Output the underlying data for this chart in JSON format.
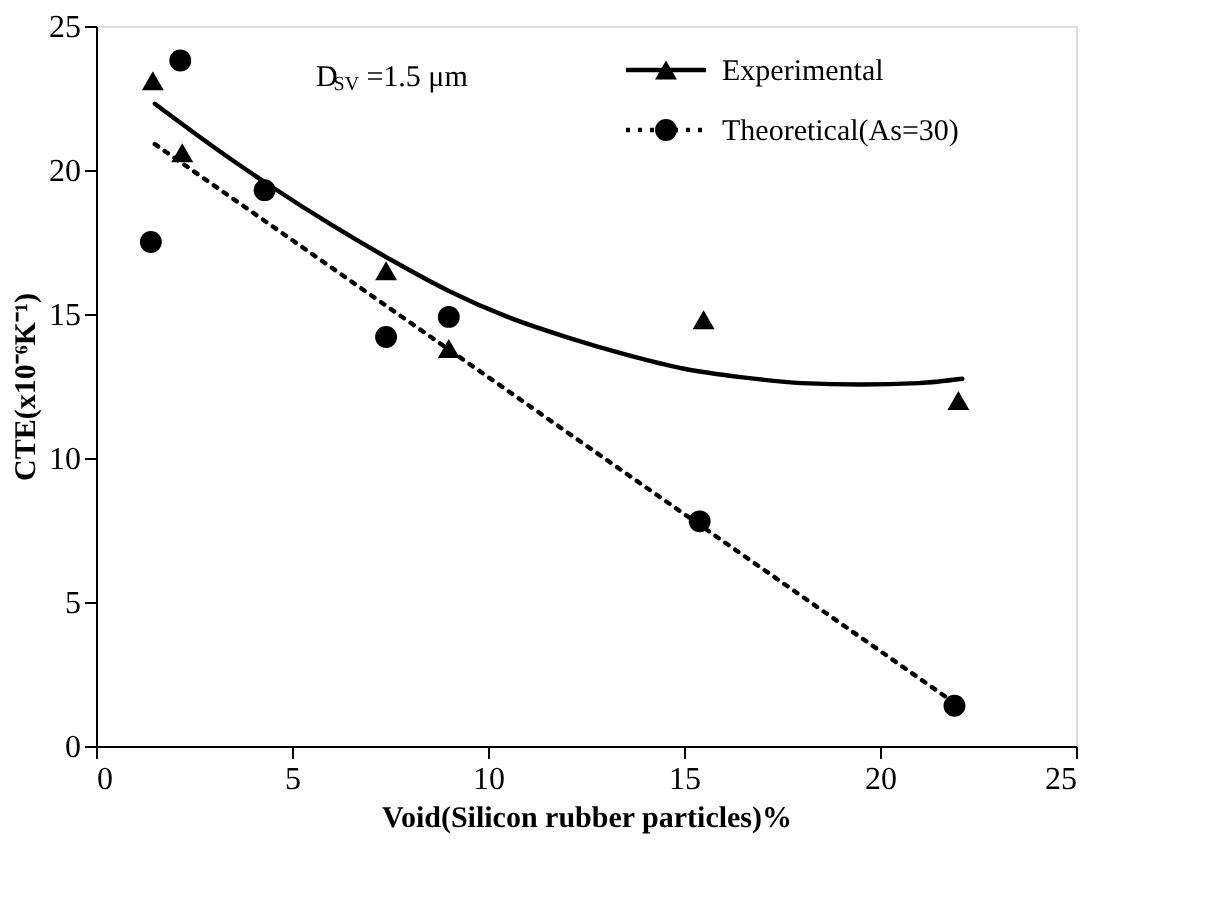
{
  "chart_data": {
    "type": "scatter",
    "xlabel": "Void(Silicon rubber particles)%",
    "ylabel": "CTE(x10⁻⁶K⁻¹)",
    "xlim": [
      0,
      25
    ],
    "ylim": [
      0,
      25
    ],
    "xticks": [
      0,
      5,
      10,
      15,
      20,
      25
    ],
    "yticks": [
      0,
      5,
      10,
      15,
      20,
      25
    ],
    "grid": false,
    "legend": "top right",
    "annotations": [
      "D$_{SV}$ =1.5 μm"
    ],
    "series": [
      {
        "name": "Experimental",
        "marker": "triangle",
        "color": "#000000",
        "x": [
          1.45,
          2.2,
          7.4,
          9.0,
          15.5,
          22.0
        ],
        "values": [
          23.1,
          20.6,
          16.5,
          13.8,
          14.8,
          12.0
        ]
      },
      {
        "type": "line",
        "marker": "none",
        "line_style": "solid",
        "color": "#000000",
        "x": [
          1.5,
          3,
          4.5,
          6,
          7.5,
          9,
          10.5,
          12,
          13.5,
          15,
          16.5,
          18,
          19.5,
          21,
          22.1
        ],
        "values": [
          22.3,
          20.8,
          19.4,
          18.1,
          16.9,
          15.8,
          14.9,
          14.2,
          13.6,
          13.1,
          12.8,
          12.6,
          12.55,
          12.6,
          12.75
        ]
      },
      {
        "name": "Theoretical(As=30)",
        "marker": "circle",
        "color": "#000000",
        "x": [
          1.4,
          2.15,
          4.3,
          7.4,
          9.0,
          15.4,
          21.9
        ],
        "values": [
          17.5,
          23.8,
          19.3,
          14.2,
          14.9,
          7.8,
          1.4
        ]
      },
      {
        "type": "line",
        "marker": "none",
        "line_style": "dotted",
        "color": "#000000",
        "x": [
          1.5,
          22.0
        ],
        "values": [
          20.9,
          1.4
        ]
      }
    ]
  }
}
